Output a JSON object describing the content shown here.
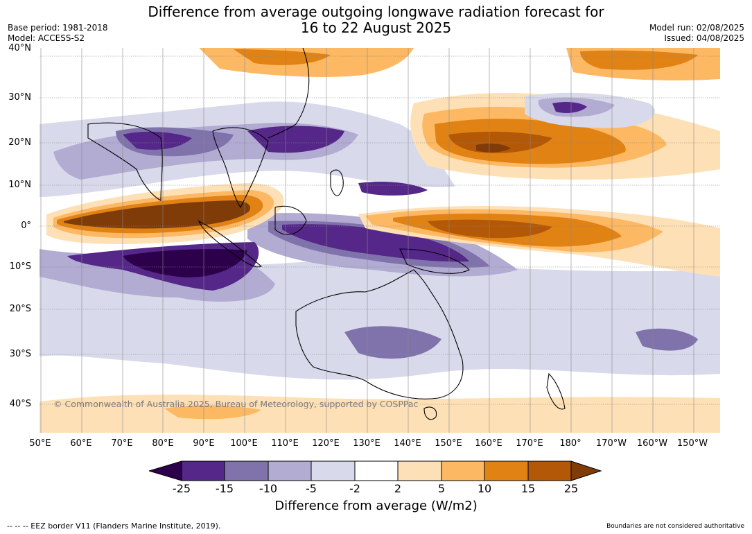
{
  "title_line1": "Difference from average outgoing longwave radiation forecast for",
  "title_line2": "16 to 22 August 2025",
  "meta_left": [
    "Base period: 1981-2018",
    "Model: ACCESS-S2"
  ],
  "meta_right": [
    "Model run: 02/08/2025",
    "Issued: 04/08/2025"
  ],
  "lat_labels": [
    "40°N",
    "30°N",
    "20°N",
    "10°N",
    "0°",
    "10°S",
    "20°S",
    "30°S",
    "40°S"
  ],
  "lon_labels": [
    "50°E",
    "60°E",
    "70°E",
    "80°E",
    "90°E",
    "100°E",
    "110°E",
    "120°E",
    "130°E",
    "140°E",
    "150°E",
    "160°E",
    "170°E",
    "180°",
    "170°W",
    "160°W",
    "150°W"
  ],
  "copyright": "© Commonwealth of Australia 2025, Bureau of Meteorology, supported by COSPPac",
  "colorbar": {
    "title": "Difference from average (W/m2)",
    "ticks": [
      "-25",
      "-15",
      "-10",
      "-5",
      "-2",
      "2",
      "5",
      "10",
      "15",
      "25"
    ],
    "colors": [
      "#2d004b",
      "#542788",
      "#8073ac",
      "#b2abd2",
      "#d8daeb",
      "#ffffff",
      "#fee0b6",
      "#fdb863",
      "#e08214",
      "#b35806",
      "#7f3b08"
    ]
  },
  "footer_left": "--  --  -- EEZ border V11 (Flanders Marine Institute, 2019).",
  "footer_right": "Boundaries are not considered authoritative"
}
